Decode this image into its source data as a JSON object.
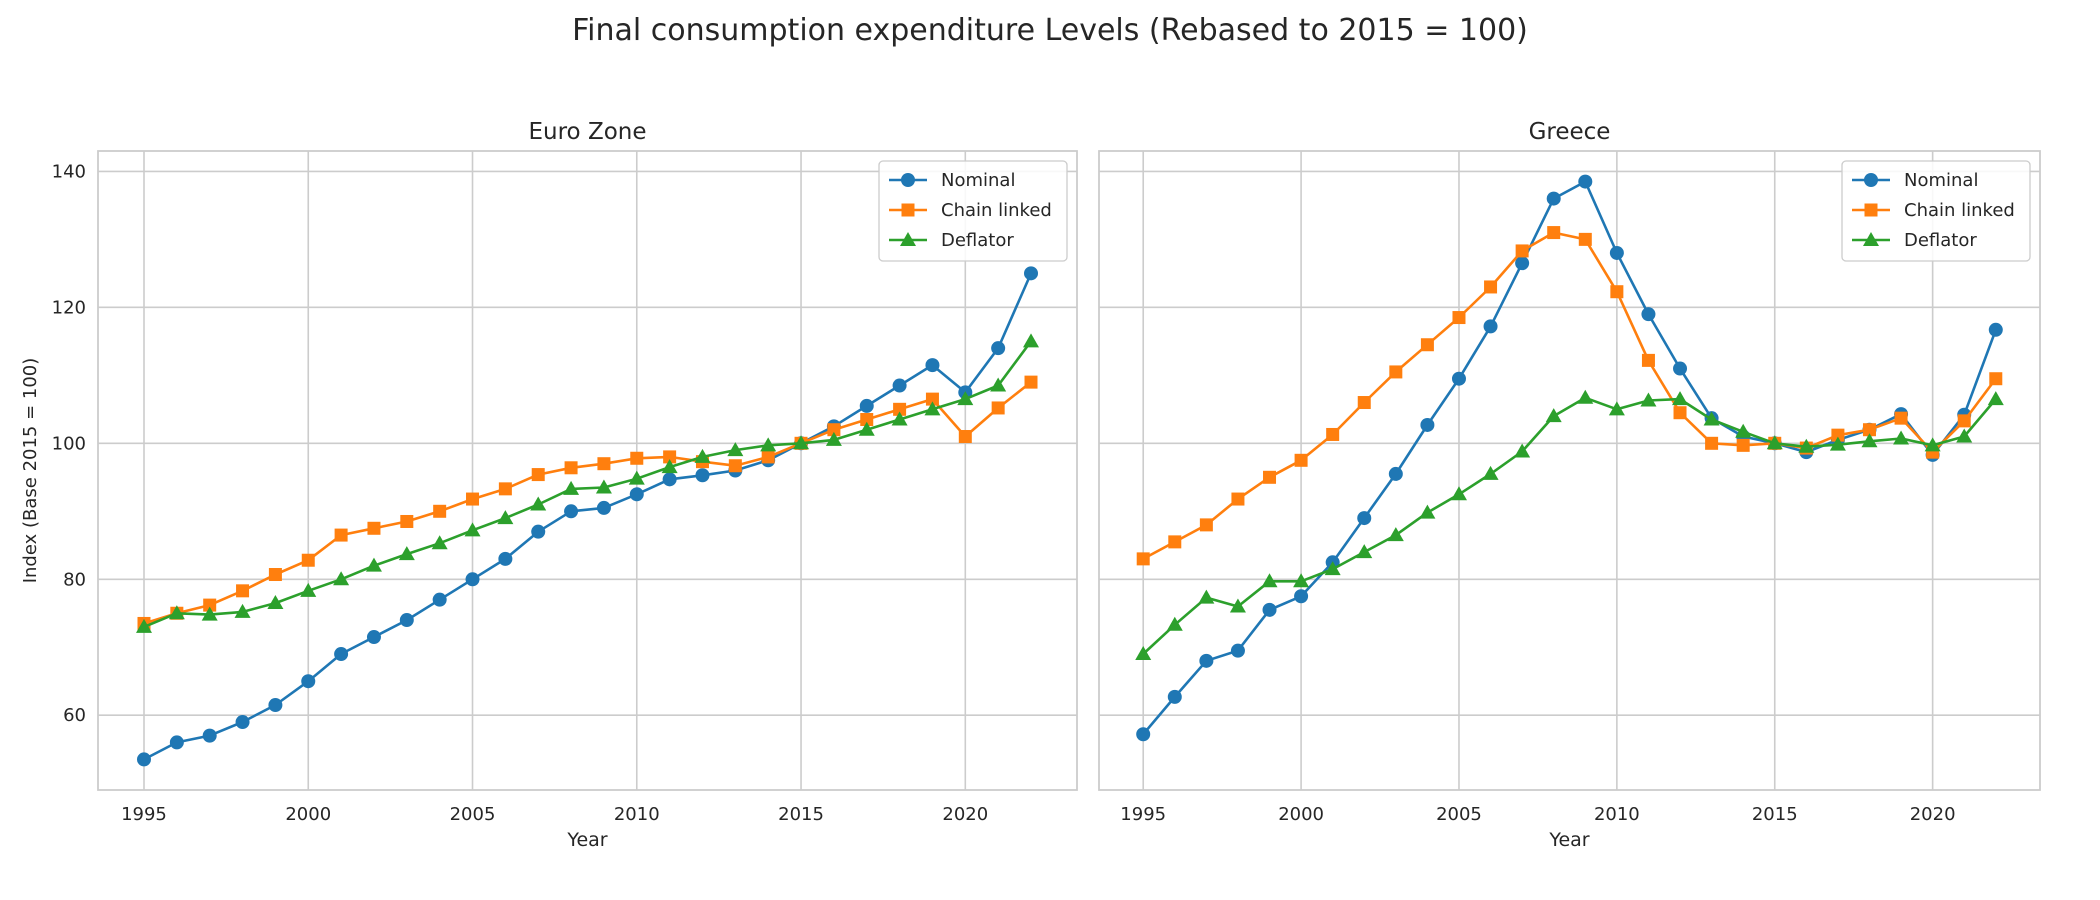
{
  "suptitle": "Final consumption expenditure Levels (Rebased to 2015 = 100)",
  "colors": {
    "nominal": "#1f77b4",
    "chain": "#ff7f0e",
    "deflator": "#2ca02c",
    "grid": "#cccccc",
    "spine": "#cccccc",
    "text": "#262626"
  },
  "chart_data": [
    {
      "type": "line",
      "title": "Euro Zone",
      "xlabel": "Year",
      "ylabel": "Index (Base 2015 = 100)",
      "xlim": [
        1993.6,
        2023.4
      ],
      "ylim": [
        49,
        143
      ],
      "xticks": [
        "1995",
        "2000",
        "2005",
        "2010",
        "2015",
        "2020"
      ],
      "yticks": [
        "60",
        "80",
        "100",
        "120",
        "140"
      ],
      "grid": true,
      "legend_position": "top-right",
      "x": [
        1995,
        1996,
        1997,
        1998,
        1999,
        2000,
        2001,
        2002,
        2003,
        2004,
        2005,
        2006,
        2007,
        2008,
        2009,
        2010,
        2011,
        2012,
        2013,
        2014,
        2015,
        2016,
        2017,
        2018,
        2019,
        2020,
        2021,
        2022
      ],
      "series": [
        {
          "name": "Nominal",
          "marker": "circle",
          "color": "#1f77b4",
          "values": [
            53.5,
            56.0,
            57.0,
            59.0,
            61.5,
            65.0,
            69.0,
            71.5,
            74.0,
            77.0,
            80.0,
            83.0,
            87.0,
            90.0,
            90.5,
            92.5,
            94.7,
            95.3,
            96.0,
            97.5,
            100.0,
            102.5,
            105.5,
            108.5,
            111.5,
            107.5,
            114.0,
            125.0
          ]
        },
        {
          "name": "Chain linked",
          "marker": "square",
          "color": "#ff7f0e",
          "values": [
            73.5,
            75.0,
            76.2,
            78.3,
            80.7,
            82.8,
            86.5,
            87.5,
            88.5,
            90.0,
            91.8,
            93.3,
            95.4,
            96.4,
            97.0,
            97.8,
            98.0,
            97.3,
            96.7,
            98.0,
            100.0,
            102.0,
            103.5,
            105.0,
            106.5,
            101.0,
            105.2,
            109.0
          ]
        },
        {
          "name": "Deflator",
          "marker": "triangle",
          "color": "#2ca02c",
          "values": [
            73.0,
            75.0,
            74.8,
            75.2,
            76.5,
            78.3,
            80.0,
            82.0,
            83.7,
            85.3,
            87.2,
            89.0,
            91.0,
            93.3,
            93.5,
            94.8,
            96.5,
            98.0,
            99.0,
            99.7,
            100.0,
            100.5,
            102.0,
            103.5,
            105.0,
            106.5,
            108.5,
            115.0
          ]
        }
      ]
    },
    {
      "type": "line",
      "title": "Greece",
      "xlabel": "Year",
      "ylabel": "",
      "xlim": [
        1993.6,
        2023.4
      ],
      "ylim": [
        49,
        143
      ],
      "xticks": [
        "1995",
        "2000",
        "2005",
        "2010",
        "2015",
        "2020"
      ],
      "yticks": [],
      "grid": true,
      "legend_position": "top-right",
      "x": [
        1995,
        1996,
        1997,
        1998,
        1999,
        2000,
        2001,
        2002,
        2003,
        2004,
        2005,
        2006,
        2007,
        2008,
        2009,
        2010,
        2011,
        2012,
        2013,
        2014,
        2015,
        2016,
        2017,
        2018,
        2019,
        2020,
        2021,
        2022
      ],
      "series": [
        {
          "name": "Nominal",
          "marker": "circle",
          "color": "#1f77b4",
          "values": [
            57.2,
            62.7,
            68.0,
            69.5,
            75.5,
            77.5,
            82.5,
            89.0,
            95.5,
            102.7,
            109.5,
            117.2,
            126.5,
            136.0,
            138.5,
            128.0,
            119.0,
            111.0,
            103.7,
            101.0,
            100.0,
            98.7,
            100.5,
            102.0,
            104.3,
            98.3,
            104.2,
            116.7
          ]
        },
        {
          "name": "Chain linked",
          "marker": "square",
          "color": "#ff7f0e",
          "values": [
            83.0,
            85.5,
            88.0,
            91.8,
            95.0,
            97.5,
            101.3,
            106.0,
            110.5,
            114.5,
            118.5,
            123.0,
            128.3,
            131.0,
            130.0,
            122.3,
            112.2,
            104.5,
            100.0,
            99.7,
            100.0,
            99.3,
            101.2,
            102.0,
            103.7,
            98.7,
            103.3,
            109.5
          ]
        },
        {
          "name": "Deflator",
          "marker": "triangle",
          "color": "#2ca02c",
          "values": [
            69.0,
            73.3,
            77.3,
            76.0,
            79.7,
            79.7,
            81.5,
            84.0,
            86.5,
            89.8,
            92.5,
            95.5,
            98.8,
            104.0,
            106.7,
            105.0,
            106.3,
            106.5,
            103.5,
            101.7,
            100.0,
            99.5,
            99.8,
            100.3,
            100.7,
            99.7,
            101.0,
            106.5
          ]
        }
      ]
    }
  ]
}
